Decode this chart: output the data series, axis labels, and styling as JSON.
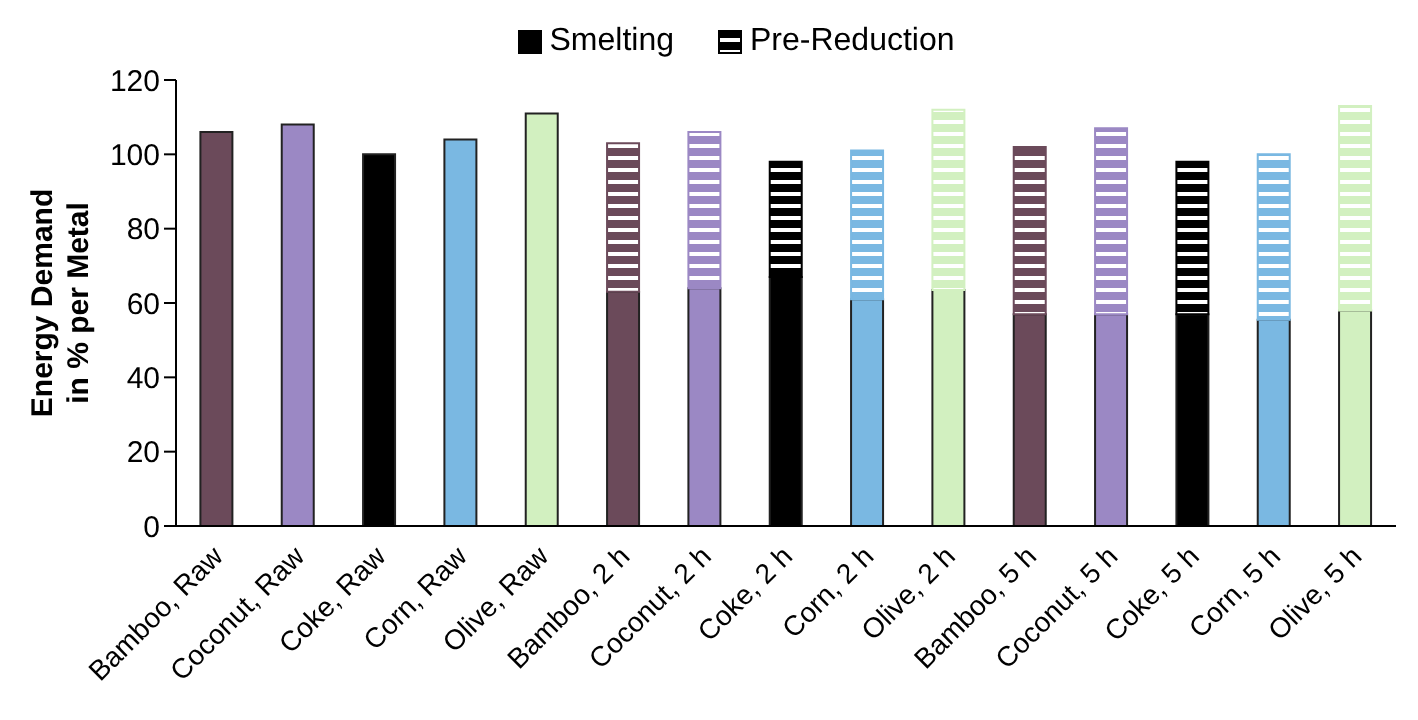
{
  "chart_data": {
    "type": "bar",
    "stacked": true,
    "ylabel": "Energy Demand\nin % per Metal",
    "categories": [
      "Bamboo, Raw",
      "Coconut, Raw",
      "Coke, Raw",
      "Corn, Raw",
      "Olive, Raw",
      "Bamboo, 2 h",
      "Coconut, 2 h",
      "Coke, 2 h",
      "Corn, 2 h",
      "Olive, 2 h",
      "Bamboo, 5 h",
      "Coconut, 5 h",
      "Coke, 5 h",
      "Corn, 5 h",
      "Olive, 5 h"
    ],
    "series": [
      {
        "name": "Smelting",
        "color": "#000000",
        "colors": [
          "#6b4a5a",
          "#9b88c4",
          "#000000",
          "#7ab8e2",
          "#d2f0c0",
          "#6b4a5a",
          "#9b88c4",
          "#000000",
          "#7ab8e2",
          "#d2f0c0",
          "#6b4a5a",
          "#9b88c4",
          "#000000",
          "#7ab8e2",
          "#d2f0c0"
        ],
        "values": [
          106,
          108,
          100,
          104,
          111,
          63,
          64,
          67,
          61,
          63.5,
          57,
          57,
          57,
          55.5,
          58
        ]
      },
      {
        "name": "Pre-Reduction",
        "color": "#000000",
        "colors": [
          "#6b4a5a",
          "#9b88c4",
          "#000000",
          "#7ab8e2",
          "#d2f0c0",
          "#6b4a5a",
          "#9b88c4",
          "#000000",
          "#7ab8e2",
          "#d2f0c0",
          "#6b4a5a",
          "#9b88c4",
          "#000000",
          "#7ab8e2",
          "#d2f0c0"
        ],
        "values": [
          null,
          null,
          null,
          null,
          null,
          40,
          42,
          31,
          40,
          48.5,
          45,
          50,
          41,
          44.5,
          55
        ]
      }
    ],
    "ylim": [
      0,
      120
    ],
    "yticks": [
      0,
      20,
      40,
      60,
      80,
      100,
      120
    ],
    "grid": false,
    "legend": "top"
  }
}
